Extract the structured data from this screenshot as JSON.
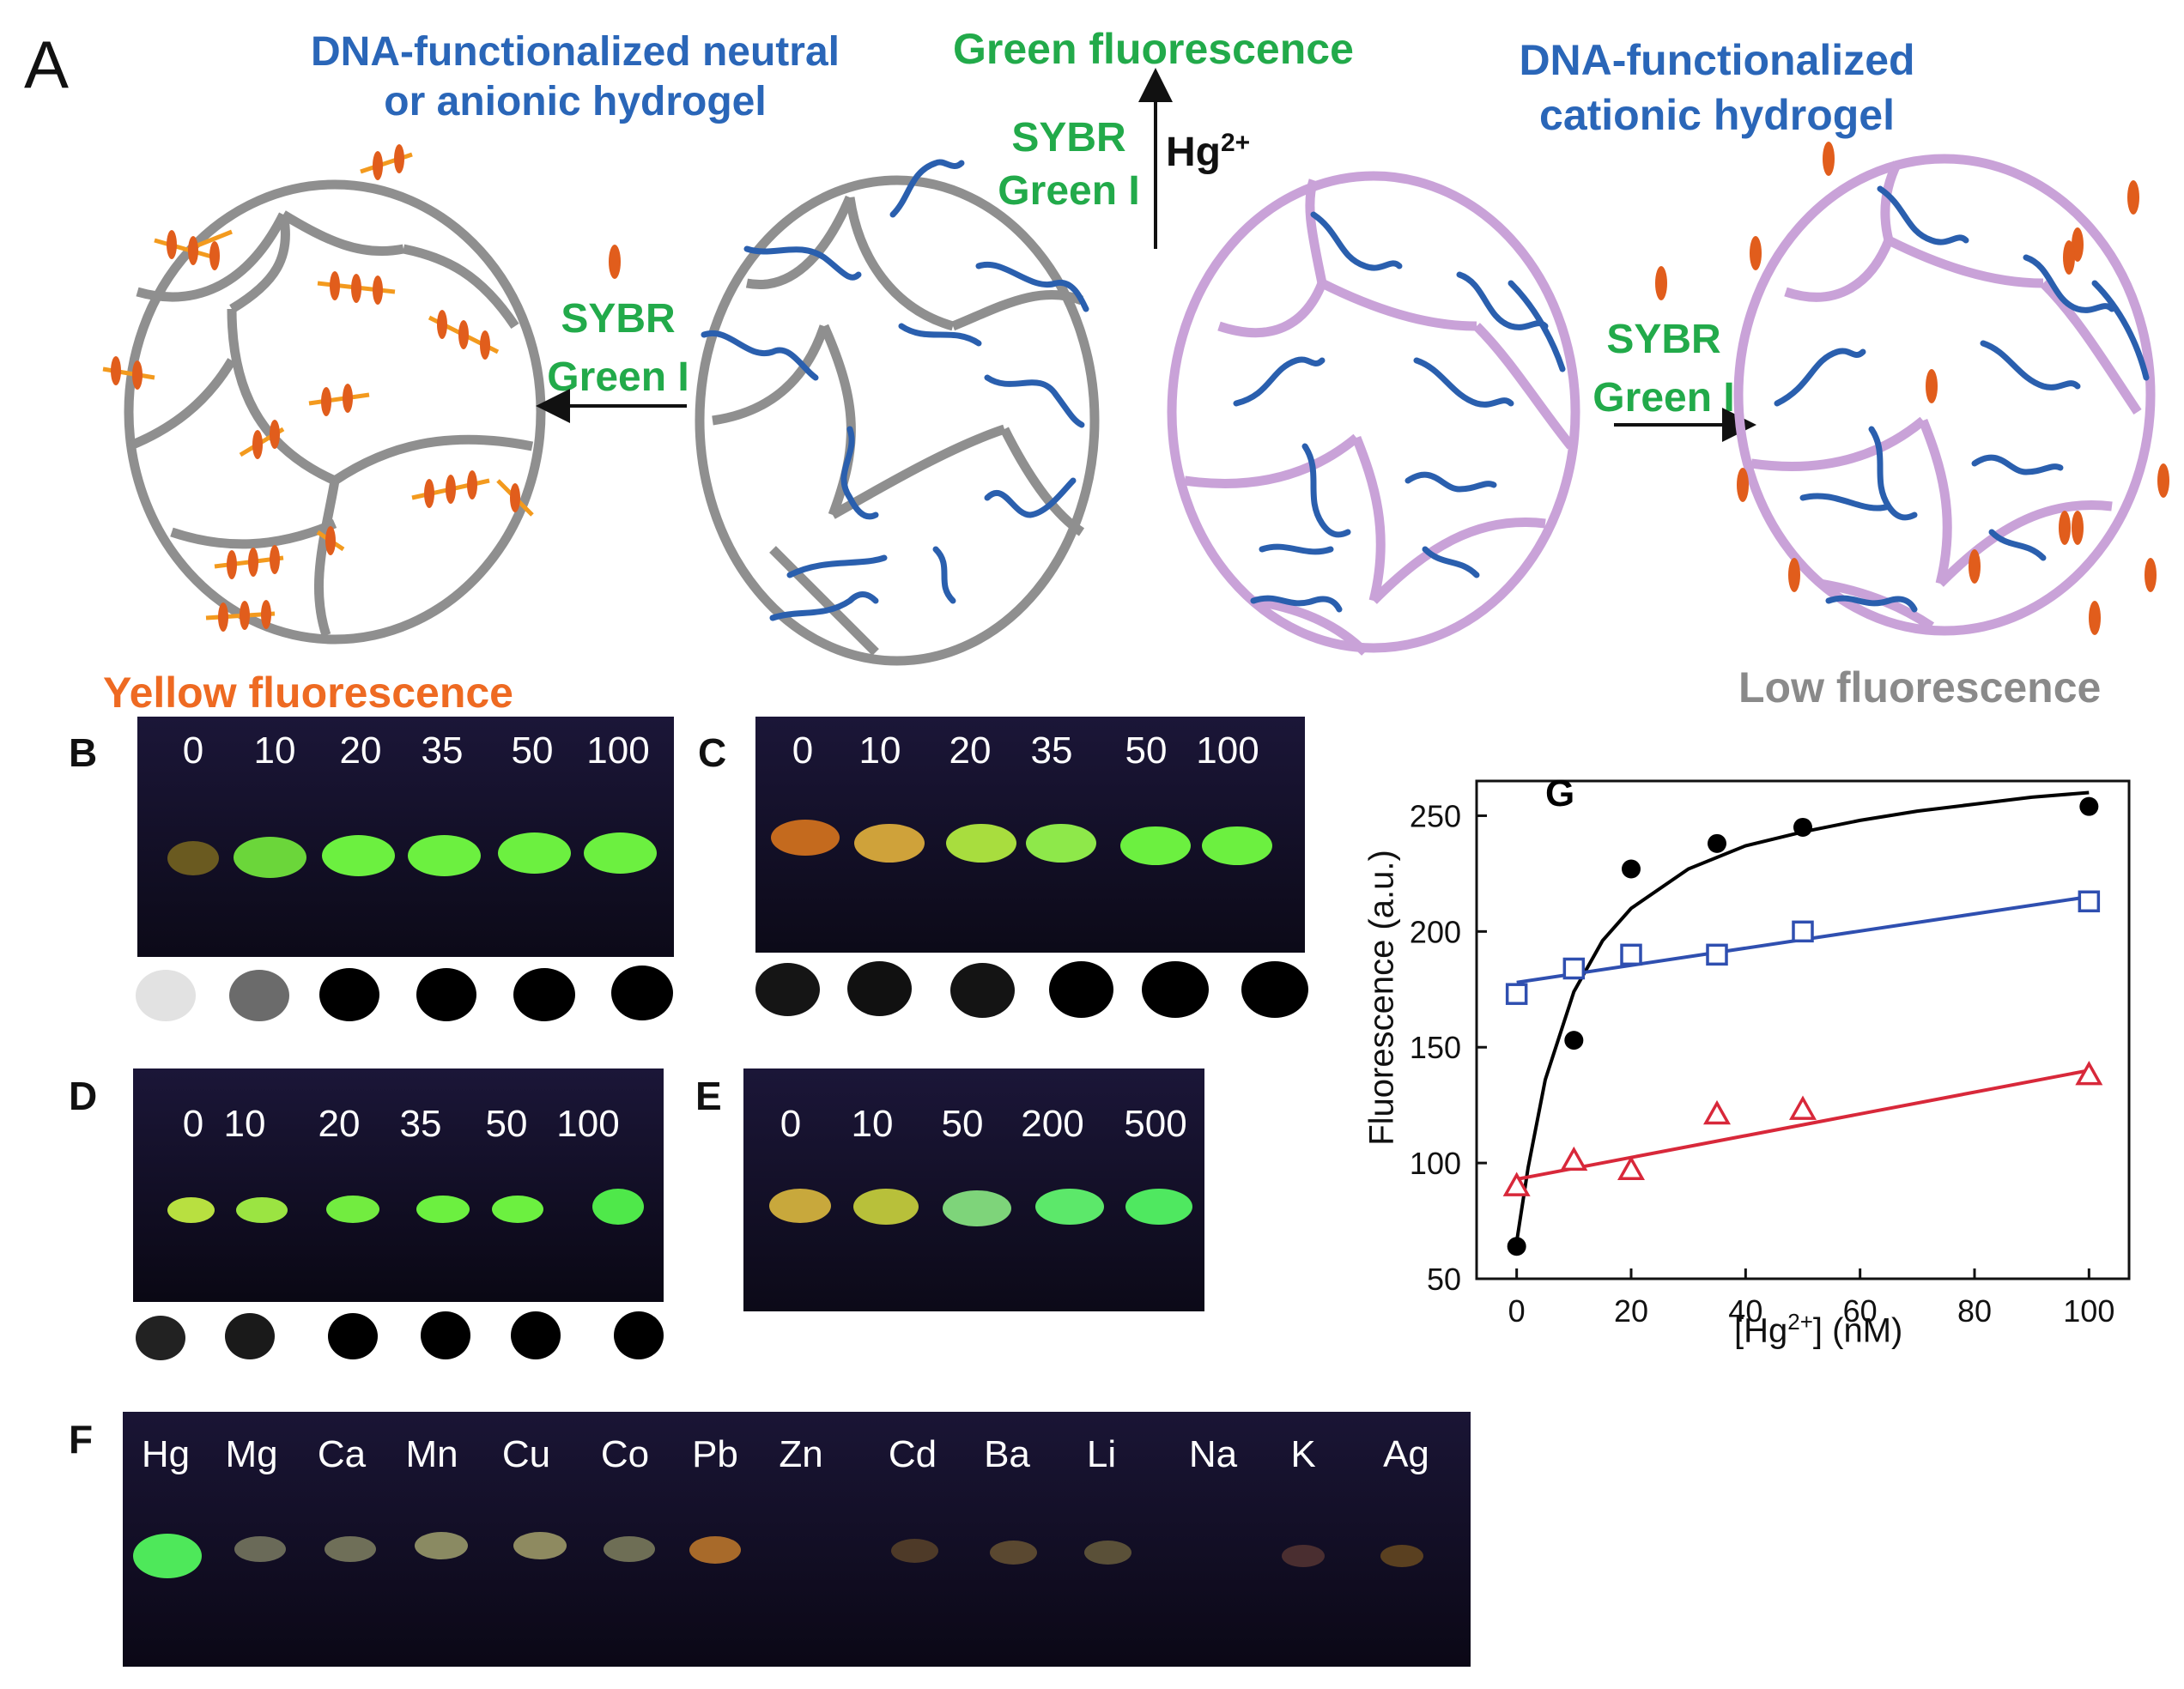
{
  "panel_a": {
    "letter": "A",
    "left_title": [
      "DNA-functionalized neutral",
      "or anionic hydrogel"
    ],
    "top_title": "Green fluorescence",
    "right_title": [
      "DNA-functionalized",
      "cationic hydrogel"
    ],
    "sybr_left": [
      "SYBR",
      "Green I"
    ],
    "sybr_top": [
      "SYBR",
      "Green I"
    ],
    "hg_label": "Hg",
    "hg_charge": "2+",
    "sybr_right": [
      "SYBR",
      "Green I"
    ],
    "bottom_left": "Yellow fluorescence",
    "bottom_right": "Low fluorescence"
  },
  "panel_b": {
    "letter": "B",
    "labels": [
      "0",
      "10",
      "20",
      "35",
      "50",
      "100"
    ]
  },
  "panel_c": {
    "letter": "C",
    "labels": [
      "0",
      "10",
      "20",
      "35",
      "50",
      "100"
    ]
  },
  "panel_d": {
    "letter": "D",
    "labels": [
      "0",
      "10",
      "20",
      "35",
      "50",
      "100"
    ]
  },
  "panel_e": {
    "letter": "E",
    "labels": [
      "0",
      "10",
      "50",
      "200",
      "500"
    ]
  },
  "panel_f": {
    "letter": "F",
    "labels": [
      "Hg",
      "Mg",
      "Ca",
      "Mn",
      "Cu",
      "Co",
      "Pb",
      "Zn",
      "Cd",
      "Ba",
      "Li",
      "Na",
      "K",
      "Ag"
    ]
  },
  "chart_data": {
    "type": "scatter",
    "panel_label": "G",
    "xlabel": "[Hg2+] (nM)",
    "xlabel_parts": {
      "pre": "[Hg",
      "sup": "2+",
      "post": "] (nM)"
    },
    "ylabel": "Fluorescence (a.u.)",
    "xlim": [
      -7,
      107
    ],
    "ylim": [
      50,
      265
    ],
    "xticks": [
      0,
      20,
      40,
      60,
      80,
      100
    ],
    "yticks": [
      50,
      100,
      150,
      200,
      250
    ],
    "series": [
      {
        "name": "filled circles",
        "marker": "circle",
        "color": "#000000",
        "x": [
          0,
          10,
          20,
          35,
          50,
          100
        ],
        "y": [
          64,
          153,
          227,
          238,
          245,
          254
        ]
      },
      {
        "name": "open squares",
        "marker": "square",
        "color": "#2f4fb0",
        "x": [
          0,
          10,
          20,
          35,
          50,
          100
        ],
        "y": [
          173,
          184,
          190,
          190,
          200,
          213
        ]
      },
      {
        "name": "open triangles",
        "marker": "triangle",
        "color": "#d8283a",
        "x": [
          0,
          10,
          20,
          35,
          50,
          100
        ],
        "y": [
          90,
          101,
          97,
          121,
          123,
          138
        ]
      }
    ],
    "fits": [
      {
        "name": "black fit",
        "color": "#000000",
        "x": [
          0,
          2,
          5,
          10,
          15,
          20,
          30,
          40,
          50,
          60,
          70,
          80,
          90,
          100
        ],
        "y": [
          66,
          98,
          136,
          174,
          196,
          210,
          227,
          237,
          243,
          248,
          252,
          255,
          258,
          260
        ]
      },
      {
        "name": "blue fit",
        "color": "#2f4fb0",
        "x": [
          0,
          100
        ],
        "y": [
          178,
          215
        ]
      },
      {
        "name": "red fit",
        "color": "#d8283a",
        "x": [
          0,
          100
        ],
        "y": [
          93,
          140
        ]
      }
    ]
  }
}
